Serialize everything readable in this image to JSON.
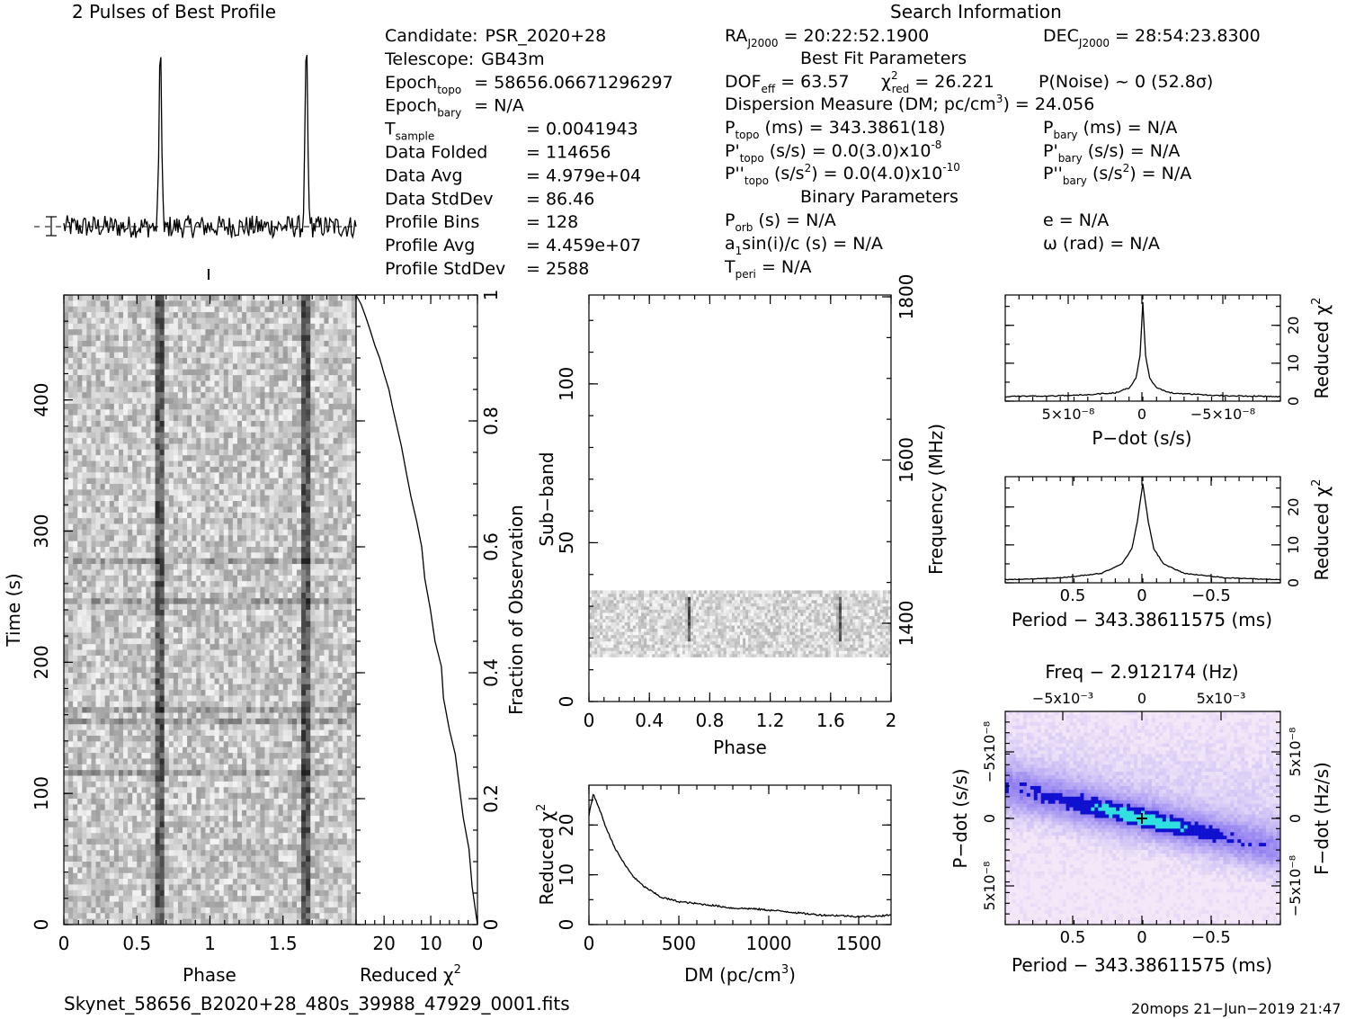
{
  "profile_title": "2 Pulses of Best Profile",
  "search_title": "Search Information",
  "header": {
    "col1": [
      {
        "label": "Candidate:",
        "value": "PSR_2020+28"
      },
      {
        "label": "Telescope:",
        "value": "GB43m"
      },
      {
        "label": "Epoch",
        "sub": "topo",
        "value": "= 58656.06671296297"
      },
      {
        "label": "Epoch",
        "sub": "bary",
        "value": "= N/A"
      },
      {
        "label": "T",
        "sub": "sample",
        "value": "=   0.0041943"
      },
      {
        "label": "Data Folded",
        "value": "=   114656"
      },
      {
        "label": "Data Avg",
        "value": "=   4.979e+04"
      },
      {
        "label": "Data StdDev",
        "value": "=   86.46"
      },
      {
        "label": "Profile Bins",
        "value": "=   128"
      },
      {
        "label": "Profile Avg",
        "value": "=   4.459e+07"
      },
      {
        "label": "Profile StdDev",
        "value": "=   2588"
      }
    ],
    "ra": "= 20:22:52.1900",
    "dec": "= 28:54:23.8300",
    "best_fit_title": "Best Fit Parameters",
    "dof": "= 63.57",
    "chi2red": "= 26.221",
    "pnoise": "P(Noise) ~ 0    (52.8σ)",
    "dm_line": "Dispersion Measure (DM; pc/cm",
    "dm_value": ") = 24.056",
    "ptopo": "(ms) =  343.3861(18)",
    "pbary": "(ms) = N/A",
    "pdtopo": "(s/s) = 0.0(3.0)x10",
    "pdtopo_exp": "-8",
    "pdbary": "(s/s) = N/A",
    "pddtopo": "= 0.0(4.0)x10",
    "pddtopo_exp": "-10",
    "pddbary": "= N/A",
    "binary_title": "Binary Parameters",
    "porb": "(s) = N/A",
    "a1": "sin(i)/c (s) = N/A",
    "tperi": "= N/A",
    "ecc": "e = N/A",
    "omega": "ω (rad) = N/A"
  },
  "footer": {
    "filename": "Skynet_58656_B2020+28_480s_39988_47929_0001.fits",
    "stamp": "20mops 21−Jun−2019 21:47"
  },
  "chart_data": [
    {
      "type": "line",
      "name": "profile",
      "title": "2 Pulses of Best Profile",
      "x_range": [
        0,
        2
      ],
      "peaks_phase": [
        0.66,
        1.66
      ],
      "baseline": 0,
      "peak_height": 1.0
    },
    {
      "type": "heatmap",
      "name": "time-phase",
      "xlabel": "Phase",
      "ylabel": "Time (s)",
      "xlim": [
        0,
        2
      ],
      "ylim": [
        0,
        480
      ],
      "x_ticks": [
        "0",
        "0.5",
        "1",
        "1.5"
      ],
      "y_ticks": [
        "0",
        "100",
        "200",
        "300",
        "400"
      ],
      "pulse_phase": [
        0.66,
        1.66
      ]
    },
    {
      "type": "line",
      "name": "chi2-vs-fraction",
      "xlabel": "Reduced χ²",
      "ylabel": "Fraction of Observation",
      "x_ticks": [
        "20",
        "10",
        "0"
      ],
      "y_ticks": [
        "0",
        "0.2",
        "0.4",
        "0.6",
        "0.8",
        "1"
      ],
      "xlim": [
        26,
        0
      ],
      "ylim": [
        0,
        1
      ],
      "x": [
        26,
        25,
        24,
        23,
        22,
        21,
        20,
        19,
        18,
        17,
        16,
        15,
        14,
        13,
        12,
        11,
        10,
        9,
        8,
        7,
        6,
        5,
        4,
        3,
        2,
        1,
        0
      ],
      "y": [
        1.0,
        0.985,
        0.965,
        0.945,
        0.92,
        0.9,
        0.875,
        0.85,
        0.82,
        0.79,
        0.76,
        0.72,
        0.68,
        0.64,
        0.6,
        0.55,
        0.5,
        0.45,
        0.41,
        0.36,
        0.31,
        0.27,
        0.22,
        0.17,
        0.12,
        0.06,
        0.0
      ]
    },
    {
      "type": "heatmap",
      "name": "subband-phase",
      "xlabel": "Phase",
      "ylabel": "Sub−band",
      "y2label": "Frequency (MHz)",
      "xlim": [
        0,
        2
      ],
      "ylim": [
        0,
        128
      ],
      "x_ticks": [
        "0",
        "0.4",
        "0.8",
        "1.2",
        "1.6",
        "2"
      ],
      "y_ticks": [
        "0",
        "50",
        "100"
      ],
      "y2_ticks": [
        "1400",
        "1600",
        "1800"
      ],
      "filled_subbands": [
        14,
        35
      ],
      "pulse_phase": [
        0.66,
        1.66
      ]
    },
    {
      "type": "line",
      "name": "dm-curve",
      "xlabel": "DM (pc/cm³)",
      "ylabel": "Reduced χ²",
      "xlim": [
        0,
        1680
      ],
      "ylim": [
        0,
        28
      ],
      "x_ticks": [
        "0",
        "500",
        "1000",
        "1500"
      ],
      "y_ticks": [
        "0",
        "10",
        "20"
      ],
      "x": [
        0,
        24,
        50,
        100,
        150,
        200,
        250,
        300,
        400,
        500,
        600,
        700,
        800,
        900,
        1000,
        1100,
        1200,
        1300,
        1400,
        1500,
        1600,
        1680
      ],
      "y": [
        22,
        26.2,
        24,
        19,
        15,
        12,
        9.5,
        7.8,
        5.5,
        4.6,
        4.2,
        3.8,
        3.3,
        3.2,
        2.9,
        2.6,
        2.2,
        1.9,
        1.8,
        1.6,
        1.7,
        1.9
      ]
    },
    {
      "type": "line",
      "name": "pdot-curve",
      "xlabel": "P−dot (s/s)",
      "ylabel": "Reduced χ²",
      "x_ticks": [
        "5×10⁻⁸",
        "0",
        "−5×10⁻⁸"
      ],
      "y_ticks": [
        "0",
        "10",
        "20"
      ],
      "ylim": [
        0,
        28
      ],
      "x": [
        -1,
        -0.5,
        -0.2,
        -0.1,
        -0.05,
        -0.02,
        0,
        0.02,
        0.05,
        0.1,
        0.2,
        0.5,
        1
      ],
      "y": [
        1.2,
        1.5,
        2.2,
        3.5,
        6,
        12,
        26.2,
        12,
        6,
        3.5,
        2.2,
        1.5,
        1.2
      ]
    },
    {
      "type": "line",
      "name": "period-curve",
      "xlabel": "Period − 343.38611575 (ms)",
      "ylabel": "Reduced χ²",
      "x_ticks": [
        "0.5",
        "0",
        "−0.5"
      ],
      "y_ticks": [
        "0",
        "10",
        "20"
      ],
      "ylim": [
        0,
        28
      ],
      "x": [
        -1,
        -0.6,
        -0.3,
        -0.15,
        -0.08,
        -0.04,
        0,
        0.04,
        0.08,
        0.15,
        0.3,
        0.6,
        1
      ],
      "y": [
        0.8,
        1.3,
        2.5,
        5,
        9,
        16,
        26.2,
        16,
        9,
        5,
        2.5,
        1.3,
        0.8
      ]
    },
    {
      "type": "heatmap",
      "name": "period-pdot",
      "title": "Freq − 2.912174 (Hz)",
      "xlabel": "Period − 343.38611575 (ms)",
      "ylabel": "P−dot (s/s)",
      "y2label": "F−dot (Hz/s)",
      "x_ticks": [
        "0.5",
        "0",
        "−0.5"
      ],
      "top_ticks": [
        "−5x10⁻³",
        "0",
        "5x10⁻³"
      ],
      "y_ticks": [
        "−5x10⁻⁸",
        "0",
        "5x10⁻⁸"
      ],
      "y2_ticks": [
        "5x10⁻⁸",
        "0",
        "−5x10⁻⁸"
      ],
      "colors": {
        "low": "#f4e8f8",
        "mid": "#8a78f0",
        "high": "#1010d0",
        "peak": "#30e0e0"
      }
    }
  ]
}
